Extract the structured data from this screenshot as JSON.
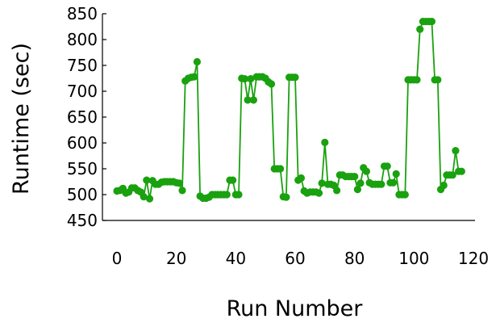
{
  "chart_data": {
    "type": "line",
    "title": "",
    "xlabel": "Run Number",
    "ylabel": "Runtime (sec)",
    "xlim": [
      0,
      120
    ],
    "ylim": [
      450,
      850
    ],
    "xticks": [
      0,
      20,
      40,
      60,
      80,
      100,
      120
    ],
    "yticks": [
      450,
      500,
      550,
      600,
      650,
      700,
      750,
      800,
      850
    ],
    "grid": false,
    "series": [
      {
        "color": "#1aa10f",
        "marker": "circle",
        "x": [
          0,
          1,
          2,
          3,
          4,
          5,
          6,
          7,
          8,
          9,
          10,
          11,
          12,
          13,
          14,
          15,
          16,
          17,
          18,
          19,
          20,
          21,
          22,
          23,
          24,
          25,
          26,
          27,
          28,
          29,
          30,
          31,
          32,
          33,
          34,
          35,
          36,
          37,
          38,
          39,
          40,
          41,
          42,
          43,
          44,
          45,
          46,
          47,
          48,
          49,
          50,
          51,
          52,
          53,
          54,
          55,
          56,
          57,
          58,
          59,
          60,
          61,
          62,
          63,
          64,
          65,
          66,
          67,
          68,
          69,
          70,
          71,
          72,
          73,
          74,
          75,
          76,
          77,
          78,
          79,
          80,
          81,
          82,
          83,
          84,
          85,
          86,
          87,
          88,
          89,
          90,
          91,
          92,
          93,
          94,
          95,
          96,
          97,
          98,
          99,
          100,
          101,
          102,
          103,
          104,
          105,
          106,
          107,
          108,
          109,
          110,
          111,
          112,
          113,
          114,
          115,
          116
        ],
        "y": [
          507,
          508,
          512,
          503,
          505,
          513,
          513,
          508,
          505,
          496,
          528,
          492,
          527,
          520,
          520,
          524,
          525,
          525,
          525,
          525,
          523,
          522,
          508,
          720,
          725,
          727,
          728,
          757,
          497,
          493,
          493,
          495,
          500,
          500,
          500,
          500,
          500,
          500,
          528,
          528,
          500,
          500,
          725,
          724,
          683,
          724,
          683,
          728,
          728,
          728,
          725,
          718,
          714,
          550,
          550,
          550,
          496,
          495,
          727,
          727,
          727,
          528,
          532,
          507,
          503,
          505,
          505,
          505,
          503,
          522,
          601,
          520,
          520,
          518,
          508,
          538,
          538,
          535,
          535,
          535,
          535,
          510,
          522,
          552,
          545,
          523,
          520,
          520,
          520,
          520,
          555,
          555,
          523,
          523,
          540,
          500,
          500,
          500,
          722,
          722,
          722,
          722,
          820,
          835,
          835,
          835,
          835,
          722,
          722,
          510,
          518,
          538,
          538,
          538,
          585,
          545,
          545
        ]
      }
    ]
  }
}
